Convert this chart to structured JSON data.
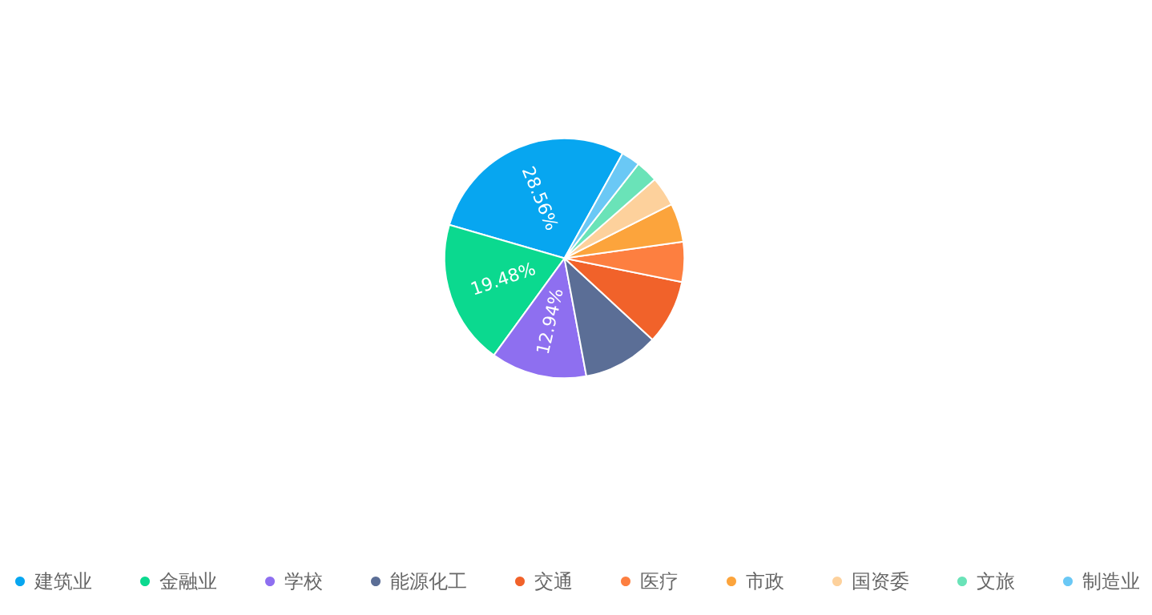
{
  "chart_data": {
    "type": "pie",
    "categories": [
      "建筑业",
      "金融业",
      "学校",
      "能源化工",
      "交通",
      "医疗",
      "市政",
      "国资委",
      "文旅",
      "制造业"
    ],
    "values": [
      28.56,
      19.48,
      12.94,
      10.2,
      8.7,
      5.4,
      5.2,
      4.0,
      3.0,
      2.52
    ],
    "value_labels": [
      "28.56%",
      "19.48%",
      "12.94%",
      null,
      null,
      null,
      null,
      null,
      null,
      null
    ],
    "colors": [
      "#07a6f0",
      "#0bd98f",
      "#8e6ff0",
      "#5b6e96",
      "#f1622a",
      "#fd7f40",
      "#fca43c",
      "#fdd19c",
      "#6ae3b8",
      "#6ac8f5"
    ],
    "legend": "bottom"
  }
}
